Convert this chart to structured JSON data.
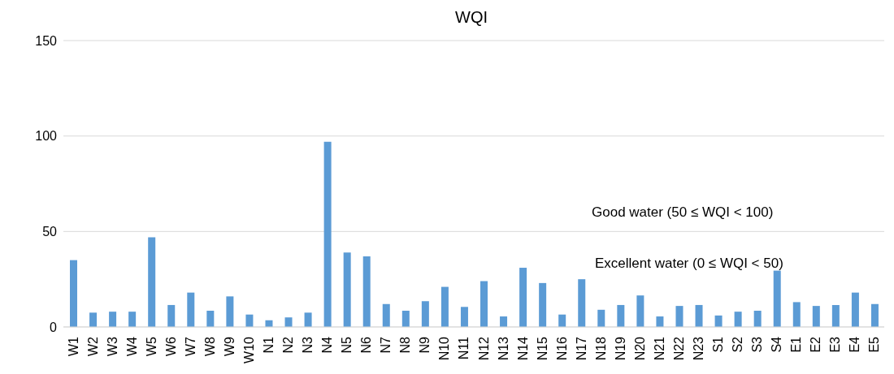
{
  "chart_data": {
    "type": "bar",
    "title": "WQI",
    "categories": [
      "W1",
      "W2",
      "W3",
      "W4",
      "W5",
      "W6",
      "W7",
      "W8",
      "W9",
      "W10",
      "N1",
      "N2",
      "N3",
      "N4",
      "N5",
      "N6",
      "N7",
      "N8",
      "N9",
      "N10",
      "N11",
      "N12",
      "N13",
      "N14",
      "N15",
      "N16",
      "N17",
      "N18",
      "N19",
      "N20",
      "N21",
      "N22",
      "N23",
      "S1",
      "S2",
      "S3",
      "S4",
      "E1",
      "E2",
      "E3",
      "E4",
      "E5"
    ],
    "values": [
      35,
      7.5,
      8,
      8,
      47,
      11.5,
      18,
      8.5,
      16,
      6.5,
      3.5,
      5,
      7.5,
      97,
      39,
      37,
      12,
      8.5,
      13.5,
      21,
      10.5,
      24,
      5.5,
      31,
      23,
      6.5,
      25,
      9,
      11.5,
      16.5,
      5.5,
      11,
      11.5,
      6,
      8,
      8.5,
      29.5,
      13,
      11,
      11.5,
      18,
      12
    ],
    "color": "#5b9bd5",
    "ylim": [
      0,
      150
    ],
    "yticks": [
      0,
      50,
      100,
      150
    ],
    "grid": "y",
    "annotations": [
      "Good water (50 ≤ WQI < 100)",
      "Excellent water (0 ≤ WQI < 50)"
    ]
  }
}
